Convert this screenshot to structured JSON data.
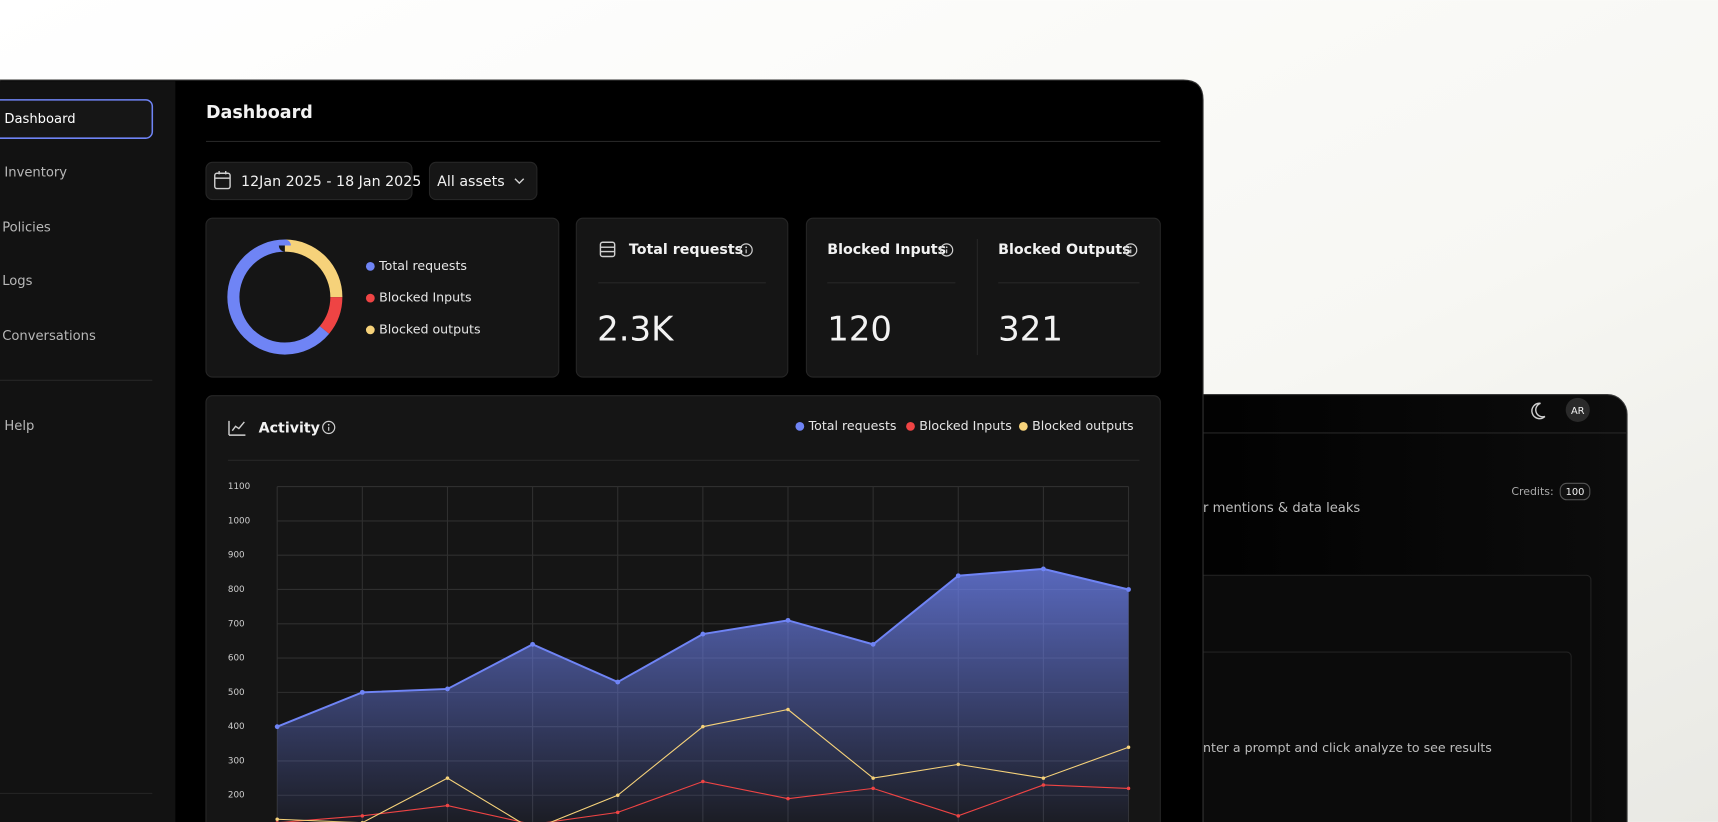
{
  "sidebar": {
    "items": [
      "Dashboard",
      "Inventory",
      "Policies",
      "Logs",
      "Conversations"
    ],
    "help": "Help"
  },
  "header": {
    "title": "Dashboard"
  },
  "filters": {
    "date_range": "12Jan 2025 - 18 Jan 2025",
    "assets": "All assets"
  },
  "donut": {
    "values": [
      64,
      11,
      25
    ]
  },
  "stats": {
    "total": {
      "label": "Total requests",
      "value": "2.3K"
    },
    "inputs": {
      "label": "Blocked Inputs",
      "value": 120
    },
    "outputs": {
      "label": "Blocked Outputs",
      "value": 321
    }
  },
  "chart_data": {
    "type": "line",
    "title": "Activity",
    "categories": [
      null,
      null,
      null,
      null,
      null,
      null,
      null,
      null,
      null,
      null,
      null
    ],
    "series": [
      {
        "name": "Total requests",
        "color": "#6f84f5",
        "area": true,
        "values": [
          400,
          500,
          510,
          640,
          530,
          670,
          710,
          640,
          840,
          860,
          800
        ]
      },
      {
        "name": "Blocked Inputs",
        "color": "#ef4444",
        "area": false,
        "values": [
          120,
          140,
          170,
          115,
          150,
          240,
          190,
          220,
          140,
          230,
          220
        ]
      },
      {
        "name": "Blocked outputs",
        "color": "#f6d27a",
        "area": false,
        "values": [
          130,
          120,
          250,
          100,
          200,
          400,
          450,
          250,
          290,
          250,
          340
        ]
      }
    ],
    "ylim": [
      100,
      1100
    ],
    "yticks": [
      200,
      300,
      400,
      500,
      600,
      700,
      800,
      900,
      1000,
      1100
    ],
    "grid": true
  },
  "secondary": {
    "avatar": "AR",
    "credits_label": "Credits:",
    "credits": 100,
    "subtitle": "r mentions & data leaks",
    "placeholder": "nter a prompt and click analyze to see results"
  }
}
